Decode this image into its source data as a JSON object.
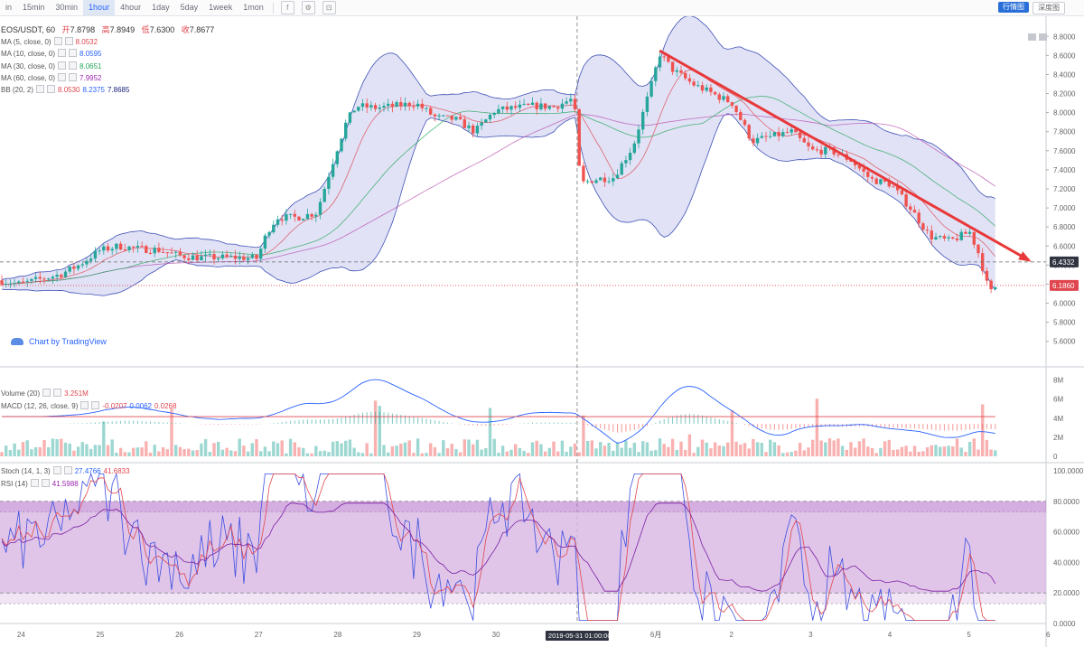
{
  "toolbar": {
    "timeframes": [
      "in",
      "15min",
      "30min",
      "1hour",
      "4hour",
      "1day",
      "5day",
      "1week",
      "1mon"
    ],
    "active": "1hour",
    "icons": [
      "indicator-icon",
      "settings-icon",
      "fullscreen-icon"
    ],
    "buttons": [
      "行情图",
      "深度图"
    ]
  },
  "main": {
    "title": "EOS/USDT, 60",
    "ohlc": {
      "o_label": "开",
      "o": "7.8798",
      "h_label": "高",
      "h": "7.8949",
      "l_label": "低",
      "l": "7.6300",
      "c_label": "收",
      "c": "7.8677"
    },
    "indicators": [
      {
        "label": "MA (5, close, 0)",
        "values": [
          "8.0532"
        ],
        "colors": [
          "#e0464e"
        ]
      },
      {
        "label": "MA (10, close, 0)",
        "values": [
          "8.0595"
        ],
        "colors": [
          "#2962ff"
        ]
      },
      {
        "label": "MA (30, close, 0)",
        "values": [
          "8.0651"
        ],
        "colors": [
          "#26a65b"
        ]
      },
      {
        "label": "MA (60, close, 0)",
        "values": [
          "7.9952"
        ],
        "colors": [
          "#9c27b0"
        ]
      },
      {
        "label": "BB (20, 2)",
        "values": [
          "8.0530",
          "8.2375",
          "7.8685"
        ],
        "colors": [
          "#e0464e",
          "#2962ff",
          "#1a237e"
        ]
      }
    ],
    "attribution": "Chart by TradingView",
    "y_ticks": [
      "8.8000",
      "8.6000",
      "8.4000",
      "8.2000",
      "8.0000",
      "7.8000",
      "7.6000",
      "7.4000",
      "7.2000",
      "7.0000",
      "6.8000",
      "6.6000",
      "6.4000",
      "6.2000",
      "6.0000",
      "5.8000",
      "5.6000"
    ],
    "price_labels": [
      {
        "text": "6.4332",
        "value": 6.4332,
        "bg": "#2f3440"
      },
      {
        "text": "6.1860",
        "value": 6.186,
        "bg": "#e0464e"
      }
    ]
  },
  "volume": {
    "legend1": {
      "label": "Volume (20)",
      "values": [
        "3.251M"
      ],
      "colors": [
        "#e0464e"
      ]
    },
    "legend2": {
      "label": "MACD (12, 26, close, 9)",
      "values": [
        "-0.0207",
        "0.0062",
        "0.0268"
      ],
      "colors": [
        "#e0464e",
        "#2962ff",
        "#e0464e"
      ]
    },
    "y_ticks": [
      "8M",
      "6M",
      "4M",
      "2M",
      "0"
    ]
  },
  "stoch": {
    "legend1": {
      "label": "Stoch (14, 1, 3)",
      "values": [
        "27.4766",
        "41.6833"
      ],
      "colors": [
        "#2962ff",
        "#e0464e"
      ]
    },
    "legend2": {
      "label": "RSI (14)",
      "values": [
        "41.5988"
      ],
      "colors": [
        "#9c27b0"
      ]
    },
    "y_ticks": [
      "100.0000",
      "80.0000",
      "60.0000",
      "40.0000",
      "20.0000",
      "0.0000"
    ]
  },
  "x_axis": {
    "ticks": [
      "24",
      "25",
      "26",
      "27",
      "28",
      "29",
      "30",
      "6月",
      "2",
      "3",
      "4",
      "5",
      "6"
    ],
    "crosshair_label": "2019-05-31 01:00:00"
  },
  "colors": {
    "up": "#26a69a",
    "down": "#ef5350",
    "band": "#c9cbef",
    "trend": "#e8393a"
  },
  "chart_data": {
    "type": "candlestick",
    "symbol": "EOS/USDT",
    "interval": "60",
    "x_range": [
      "2019-05-23 18:00",
      "2019-06-06 00:00"
    ],
    "y_range": [
      5.55,
      8.85
    ],
    "price_path": [
      [
        "05-23 18:00",
        6.24
      ],
      [
        "05-24 00:00",
        6.2
      ],
      [
        "05-24 06:00",
        6.25
      ],
      [
        "05-24 12:00",
        6.3
      ],
      [
        "05-24 18:00",
        6.4
      ],
      [
        "05-25 00:00",
        6.55
      ],
      [
        "05-25 06:00",
        6.6
      ],
      [
        "05-25 12:00",
        6.57
      ],
      [
        "05-25 18:00",
        6.56
      ],
      [
        "05-26 00:00",
        6.5
      ],
      [
        "05-26 06:00",
        6.48
      ],
      [
        "05-26 12:00",
        6.48
      ],
      [
        "05-26 18:00",
        6.48
      ],
      [
        "05-27 00:00",
        6.47
      ],
      [
        "05-27 03:00",
        6.75
      ],
      [
        "05-27 06:00",
        6.9
      ],
      [
        "05-27 12:00",
        6.9
      ],
      [
        "05-27 18:00",
        6.95
      ],
      [
        "05-28 00:00",
        7.6
      ],
      [
        "05-28 03:00",
        7.9
      ],
      [
        "05-28 06:00",
        8.07
      ],
      [
        "05-28 12:00",
        8.05
      ],
      [
        "05-28 18:00",
        8.07
      ],
      [
        "05-29 00:00",
        8.1
      ],
      [
        "05-29 06:00",
        7.95
      ],
      [
        "05-29 12:00",
        7.93
      ],
      [
        "05-29 18:00",
        7.8
      ],
      [
        "05-30 00:00",
        8.02
      ],
      [
        "05-30 06:00",
        8.05
      ],
      [
        "05-30 12:00",
        8.07
      ],
      [
        "05-30 18:00",
        8.06
      ],
      [
        "05-31 00:00",
        8.15
      ],
      [
        "05-31 02:00",
        7.25
      ],
      [
        "05-31 06:00",
        7.3
      ],
      [
        "05-31 12:00",
        7.32
      ],
      [
        "05-31 18:00",
        7.65
      ],
      [
        "06-01 00:00",
        8.35
      ],
      [
        "06-01 02:00",
        8.62
      ],
      [
        "06-01 06:00",
        8.45
      ],
      [
        "06-01 12:00",
        8.3
      ],
      [
        "06-01 18:00",
        8.2
      ],
      [
        "06-02 00:00",
        8.1
      ],
      [
        "06-02 06:00",
        7.7
      ],
      [
        "06-02 12:00",
        7.75
      ],
      [
        "06-02 18:00",
        7.8
      ],
      [
        "06-03 00:00",
        7.6
      ],
      [
        "06-03 06:00",
        7.6
      ],
      [
        "06-03 12:00",
        7.5
      ],
      [
        "06-03 18:00",
        7.3
      ],
      [
        "06-04 00:00",
        7.25
      ],
      [
        "06-04 06:00",
        7.0
      ],
      [
        "06-04 12:00",
        6.7
      ],
      [
        "06-04 18:00",
        6.65
      ],
      [
        "06-05 00:00",
        6.75
      ],
      [
        "06-05 03:00",
        6.5
      ],
      [
        "06-05 06:00",
        6.1
      ],
      [
        "06-05 08:00",
        6.18
      ]
    ],
    "trendline": [
      [
        "06-01 02:00",
        8.65
      ],
      [
        "06-05 18:00",
        6.45
      ]
    ],
    "horizontal_levels": [
      6.4332,
      6.186
    ]
  }
}
